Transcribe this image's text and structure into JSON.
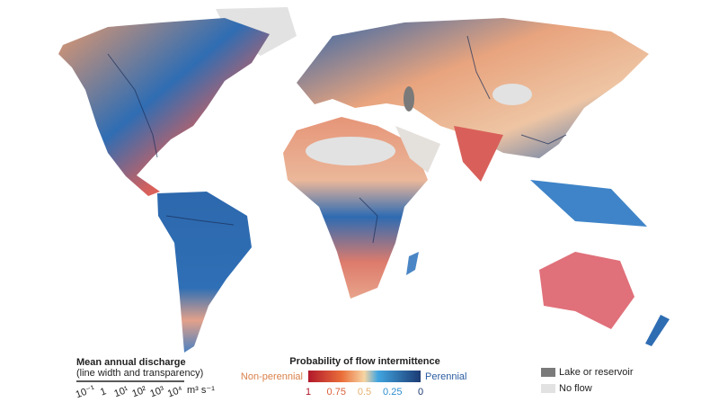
{
  "legend": {
    "discharge": {
      "title": "Mean annual discharge",
      "subtitle": "(line width and transparency)",
      "ticks": [
        "10⁻¹",
        "1",
        "10¹",
        "10²",
        "10³",
        "10⁴"
      ],
      "unit": "m³ s⁻¹"
    },
    "intermittence": {
      "title": "Probability of flow intermittence",
      "low_label": "Non-perennial",
      "high_label": "Perennial",
      "ticks": [
        "1",
        "0.75",
        "0.5",
        "0.25",
        "0"
      ]
    },
    "categories": [
      "Lake or reservoir",
      "No flow"
    ]
  }
}
